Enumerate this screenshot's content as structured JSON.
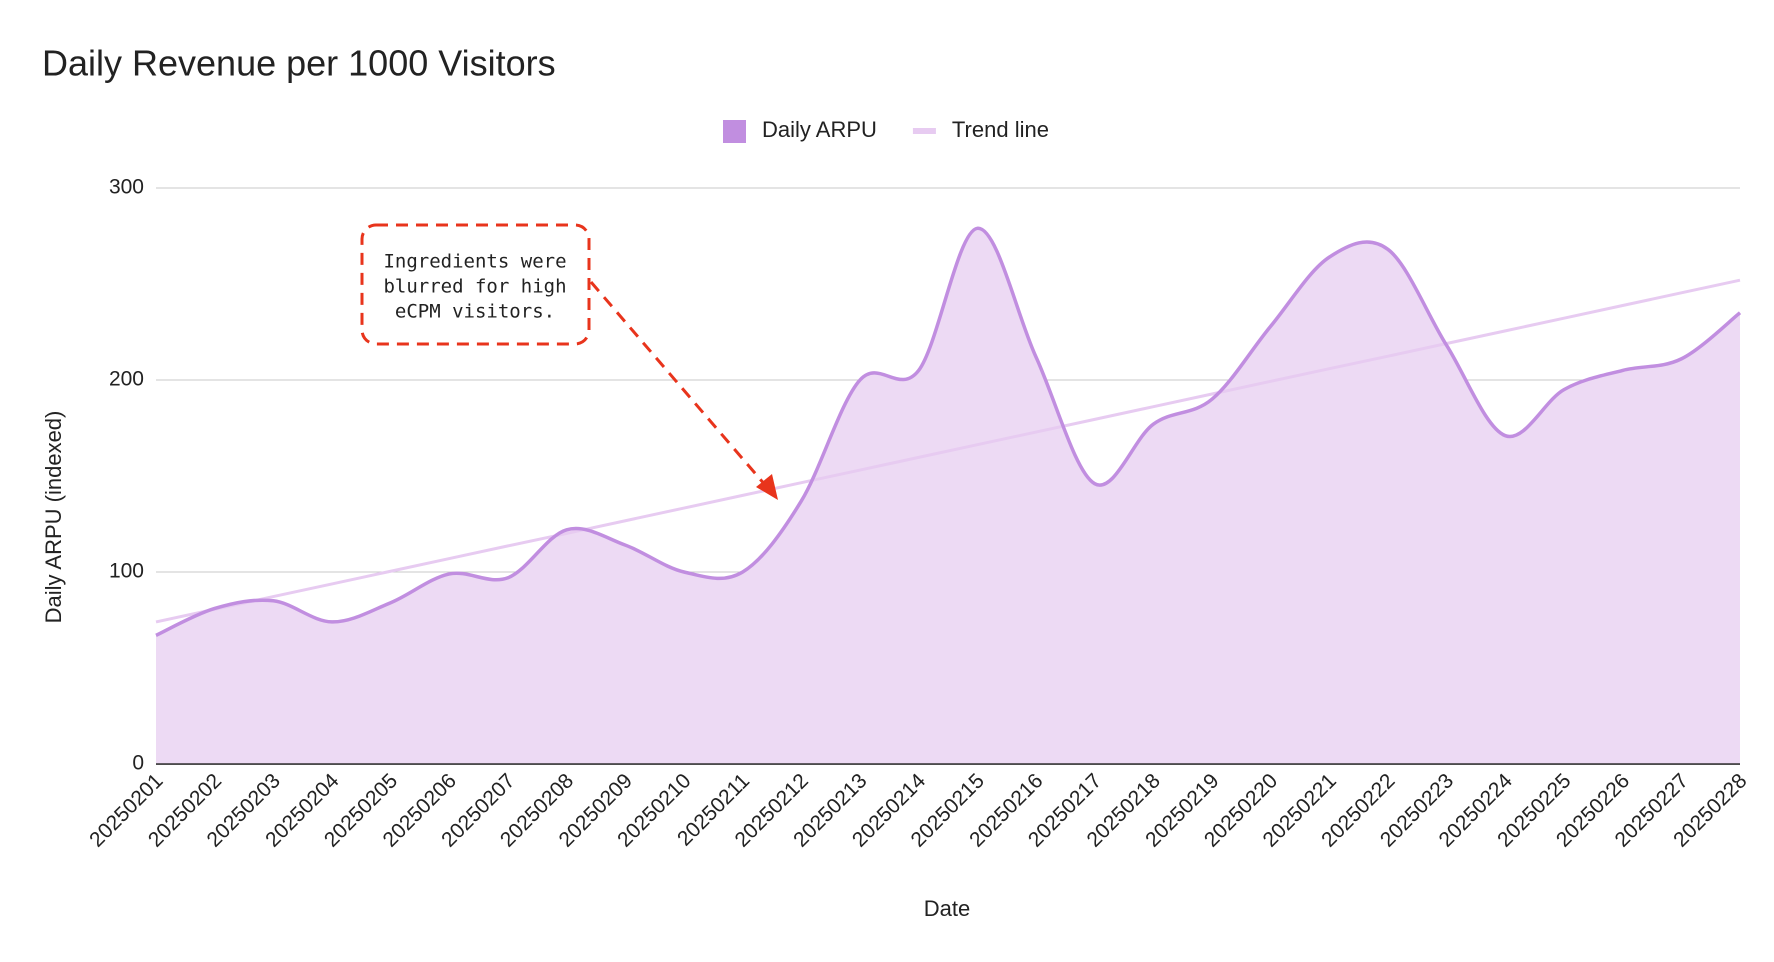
{
  "chart_data": {
    "type": "area",
    "title": "Daily Revenue per 1000 Visitors",
    "x_label": "Date",
    "y_label": "Daily ARPU (indexed)",
    "categories": [
      "20250201",
      "20250202",
      "20250203",
      "20250204",
      "20250205",
      "20250206",
      "20250207",
      "20250208",
      "20250209",
      "20250210",
      "20250211",
      "20250212",
      "20250213",
      "20250214",
      "20250215",
      "20250216",
      "20250217",
      "20250218",
      "20250219",
      "20250220",
      "20250221",
      "20250222",
      "20250223",
      "20250224",
      "20250225",
      "20250226",
      "20250227",
      "20250228"
    ],
    "series": [
      {
        "name": "Daily ARPU",
        "color": "#c18ee0",
        "fill": "#eddaf4",
        "smooth": true,
        "values": [
          67,
          81,
          85,
          74,
          84,
          99,
          97,
          122,
          114,
          100,
          100,
          137,
          200,
          205,
          279,
          212,
          146,
          177,
          190,
          228,
          264,
          268,
          218,
          171,
          195,
          205,
          211,
          235
        ]
      },
      {
        "name": "Trend line",
        "color": "#e7cbf1",
        "values": [
          74,
          80.6,
          87.2,
          93.8,
          100.4,
          107.0,
          113.6,
          120.1,
          126.7,
          133.3,
          139.9,
          146.5,
          153.1,
          159.7,
          166.3,
          172.9,
          179.5,
          186.1,
          192.7,
          199.3,
          205.9,
          212.4,
          219.0,
          225.6,
          232.2,
          238.8,
          245.4,
          252.0
        ]
      }
    ],
    "ylim": [
      0,
      300
    ],
    "yticks": [
      0,
      100,
      200,
      300
    ],
    "grid": true,
    "legend": "top",
    "annotation": {
      "lines": [
        "Ingredients were",
        "blurred for high",
        "eCPM visitors."
      ],
      "color": "#e8341c"
    }
  }
}
